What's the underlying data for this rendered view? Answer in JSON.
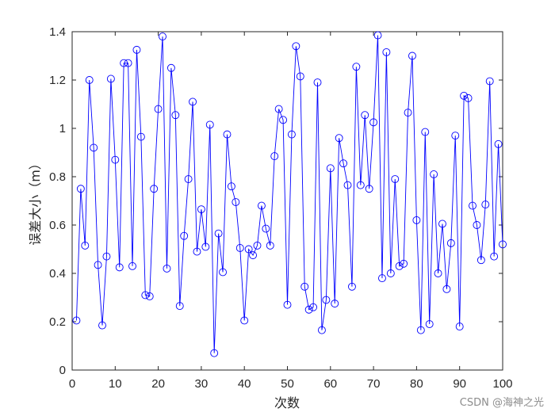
{
  "chart_data": {
    "type": "line",
    "xlabel": "次数",
    "ylabel": "误差大小（m）",
    "xlim": [
      0,
      100
    ],
    "ylim": [
      0,
      1.4
    ],
    "xticks": [
      "0",
      "10",
      "20",
      "30",
      "40",
      "50",
      "60",
      "70",
      "80",
      "90",
      "100"
    ],
    "yticks": [
      "0",
      "0.2",
      "0.4",
      "0.6",
      "0.8",
      "1",
      "1.2",
      "1.4"
    ],
    "grid": false,
    "line_color": "#0000ff",
    "marker": "circle",
    "x": [
      1,
      2,
      3,
      4,
      5,
      6,
      7,
      8,
      9,
      10,
      11,
      12,
      13,
      14,
      15,
      16,
      17,
      18,
      19,
      20,
      21,
      22,
      23,
      24,
      25,
      26,
      27,
      28,
      29,
      30,
      31,
      32,
      33,
      34,
      35,
      36,
      37,
      38,
      39,
      40,
      41,
      42,
      43,
      44,
      45,
      46,
      47,
      48,
      49,
      50,
      51,
      52,
      53,
      54,
      55,
      56,
      57,
      58,
      59,
      60,
      61,
      62,
      63,
      64,
      65,
      66,
      67,
      68,
      69,
      70,
      71,
      72,
      73,
      74,
      75,
      76,
      77,
      78,
      79,
      80,
      81,
      82,
      83,
      84,
      85,
      86,
      87,
      88,
      89,
      90,
      91,
      92,
      93,
      94,
      95,
      96,
      97,
      98,
      99,
      100
    ],
    "y": [
      0.205,
      0.75,
      0.515,
      1.2,
      0.92,
      0.435,
      0.185,
      0.47,
      1.205,
      0.87,
      0.425,
      1.27,
      1.27,
      0.43,
      1.325,
      0.965,
      0.31,
      0.305,
      0.75,
      1.08,
      1.38,
      0.42,
      1.25,
      1.055,
      0.265,
      0.555,
      0.79,
      1.11,
      0.49,
      0.665,
      0.51,
      1.015,
      0.07,
      0.565,
      0.405,
      0.975,
      0.76,
      0.695,
      0.505,
      0.205,
      0.5,
      0.475,
      0.515,
      0.68,
      0.585,
      0.515,
      0.885,
      1.08,
      1.035,
      0.27,
      0.975,
      1.34,
      1.215,
      0.345,
      0.25,
      0.26,
      1.19,
      0.165,
      0.29,
      0.835,
      0.275,
      0.96,
      0.855,
      0.765,
      0.345,
      1.255,
      0.765,
      1.055,
      0.75,
      1.025,
      1.385,
      0.38,
      1.315,
      0.4,
      0.79,
      0.43,
      0.44,
      1.065,
      1.3,
      0.62,
      0.165,
      0.985,
      0.19,
      0.81,
      0.4,
      0.605,
      0.335,
      0.525,
      0.97,
      0.18,
      1.135,
      1.125,
      0.68,
      0.6,
      0.455,
      0.685,
      1.195,
      0.47,
      0.935,
      0.52
    ]
  },
  "watermark": "CSDN @海神之光"
}
